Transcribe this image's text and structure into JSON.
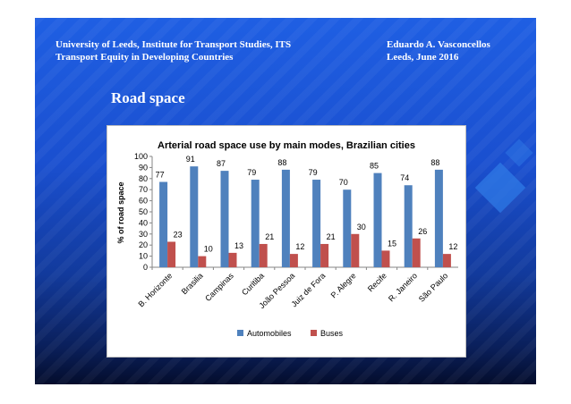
{
  "header": {
    "left_line1": "University of Leeds, Institute for  Transport Studies, ITS",
    "left_line2": "Transport Equity in Developing Countries",
    "right_line1": "Eduardo A. Vasconcellos",
    "right_line2": "Leeds, June 2016"
  },
  "slide_title": "Road space",
  "chart_data": {
    "type": "bar",
    "title": "Arterial road space use by main modes, Brazilian cities",
    "xlabel": "",
    "ylabel": "% of road space",
    "ylim": [
      0,
      100
    ],
    "yticks": [
      0,
      10,
      20,
      30,
      40,
      50,
      60,
      70,
      80,
      90,
      100
    ],
    "categories": [
      "B. Horizonte",
      "Brasilia",
      "Campinas",
      "Curitiba",
      "João Pessoa",
      "Juiz de Fora",
      "P. Alegre",
      "Recife",
      "R. Janeiro",
      "São Paulo"
    ],
    "series": [
      {
        "name": "Automobiles",
        "color": "#4f81bd",
        "values": [
          77,
          91,
          87,
          79,
          88,
          79,
          70,
          85,
          74,
          88
        ]
      },
      {
        "name": "Buses",
        "color": "#c0504d",
        "values": [
          23,
          10,
          13,
          21,
          12,
          21,
          30,
          15,
          26,
          12
        ]
      }
    ],
    "grid": false,
    "legend": "bottom",
    "data_labels": true
  }
}
